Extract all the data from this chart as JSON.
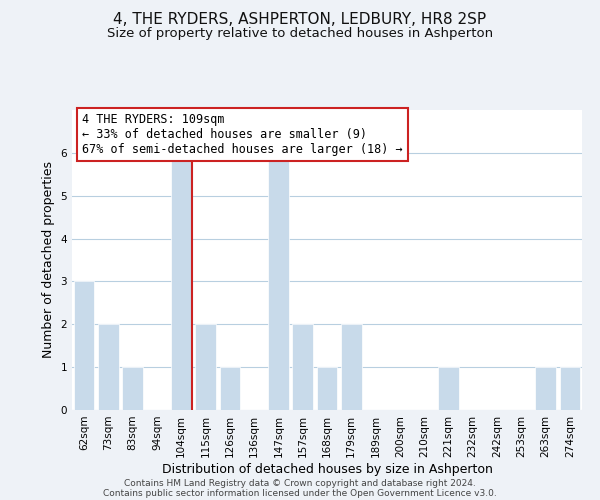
{
  "title": "4, THE RYDERS, ASHPERTON, LEDBURY, HR8 2SP",
  "subtitle": "Size of property relative to detached houses in Ashperton",
  "xlabel": "Distribution of detached houses by size in Ashperton",
  "ylabel": "Number of detached properties",
  "footnote1": "Contains HM Land Registry data © Crown copyright and database right 2024.",
  "footnote2": "Contains public sector information licensed under the Open Government Licence v3.0.",
  "bin_labels": [
    "62sqm",
    "73sqm",
    "83sqm",
    "94sqm",
    "104sqm",
    "115sqm",
    "126sqm",
    "136sqm",
    "147sqm",
    "157sqm",
    "168sqm",
    "179sqm",
    "189sqm",
    "200sqm",
    "210sqm",
    "221sqm",
    "232sqm",
    "242sqm",
    "253sqm",
    "263sqm",
    "274sqm"
  ],
  "bar_heights": [
    3,
    2,
    1,
    0,
    6,
    2,
    1,
    0,
    6,
    2,
    1,
    2,
    0,
    0,
    0,
    1,
    0,
    0,
    0,
    1,
    1
  ],
  "bar_color": "#c8daea",
  "red_line_index": 4,
  "annotation_text_line1": "4 THE RYDERS: 109sqm",
  "annotation_text_line2": "← 33% of detached houses are smaller (9)",
  "annotation_text_line3": "67% of semi-detached houses are larger (18) →",
  "ylim": [
    0,
    7
  ],
  "yticks": [
    0,
    1,
    2,
    3,
    4,
    5,
    6,
    7
  ],
  "background_color": "#eef2f7",
  "plot_bg_color": "#ffffff",
  "bar_edge_color": "#ffffff",
  "grid_color": "#b8cfe0",
  "title_fontsize": 11,
  "subtitle_fontsize": 9.5,
  "axis_label_fontsize": 9,
  "tick_fontsize": 7.5,
  "annotation_fontsize": 8.5,
  "footnote_fontsize": 6.5
}
